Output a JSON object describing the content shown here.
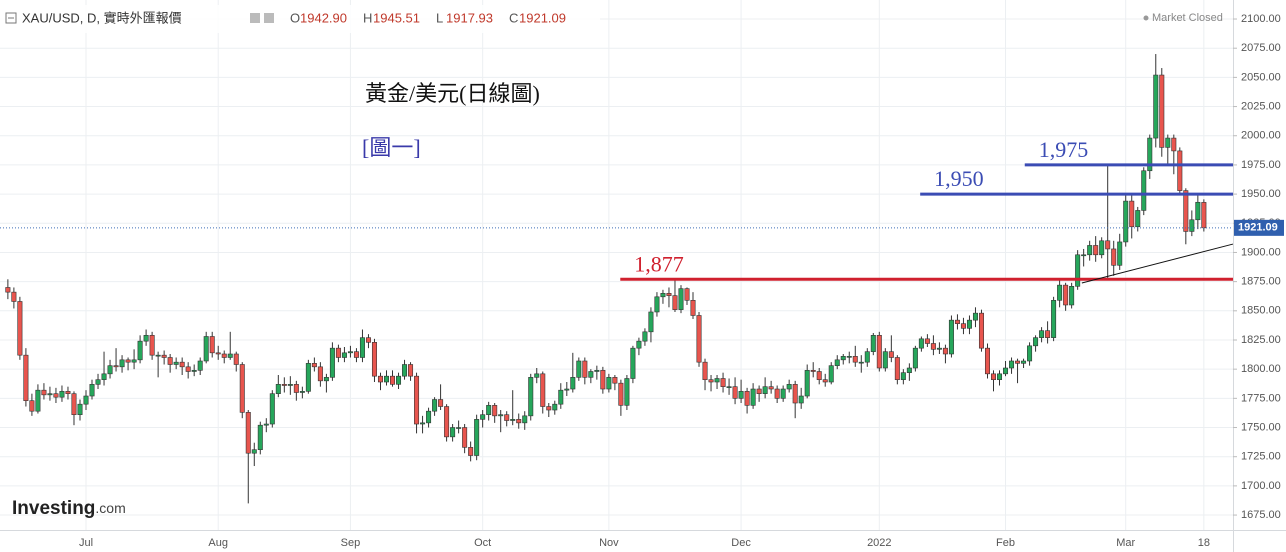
{
  "chart_data": {
    "type": "candlestick",
    "symbol": "XAU/USD, D, 實時外匯報價",
    "ohlc_labels": [
      "O",
      "H",
      "L",
      "C"
    ],
    "ohlc_values": [
      "1942.90",
      "1945.51",
      "1917.93",
      "1921.09"
    ],
    "status": "Market Closed",
    "title": "黃金/美元(日線圖)",
    "subtitle": "[圖一]",
    "logo": [
      "Investing",
      ".com"
    ],
    "up_color": "#26a65b",
    "down_color": "#e8554e",
    "last_price": {
      "value": 1921.09,
      "label": "1921.09"
    },
    "xlim": [
      -1.31,
      203.85
    ],
    "ylim": [
      1662.2,
      2116.3
    ],
    "xticks": [
      {
        "value": 13,
        "label": "Jul"
      },
      {
        "value": 35,
        "label": "Aug"
      },
      {
        "value": 57,
        "label": "Sep"
      },
      {
        "value": 79,
        "label": "Oct"
      },
      {
        "value": 100,
        "label": "Nov"
      },
      {
        "value": 122,
        "label": "Dec"
      },
      {
        "value": 145,
        "label": "2022"
      },
      {
        "value": 166,
        "label": "Feb"
      },
      {
        "value": 186,
        "label": "Mar"
      },
      {
        "value": 199,
        "label": "18"
      }
    ],
    "yticks": [
      {
        "value": 1675,
        "label": "1675.00"
      },
      {
        "value": 1700,
        "label": "1700.00"
      },
      {
        "value": 1725,
        "label": "1725.00"
      },
      {
        "value": 1750,
        "label": "1750.00"
      },
      {
        "value": 1775,
        "label": "1775.00"
      },
      {
        "value": 1800,
        "label": "1800.00"
      },
      {
        "value": 1825,
        "label": "1825.00"
      },
      {
        "value": 1850,
        "label": "1850.00"
      },
      {
        "value": 1875,
        "label": "1875.00"
      },
      {
        "value": 1900,
        "label": "1900.00"
      },
      {
        "value": 1925,
        "label": "1925.00"
      },
      {
        "value": 1950,
        "label": "1950.00"
      },
      {
        "value": 1975,
        "label": "1975.00"
      },
      {
        "value": 2000,
        "label": "2000.00"
      },
      {
        "value": 2025,
        "label": "2025.00"
      },
      {
        "value": 2050,
        "label": "2050.00"
      },
      {
        "value": 2075,
        "label": "2075.00"
      },
      {
        "value": 2100,
        "label": "2100.00"
      }
    ],
    "levels": [
      {
        "value": 1975,
        "label": "1,975",
        "start": 169.2,
        "color": "#3b4cb4"
      },
      {
        "value": 1950,
        "label": "1,950",
        "start": 151.8,
        "color": "#3b4cb4"
      },
      {
        "value": 1877,
        "label": "1,877",
        "start": 101.9,
        "color": "#d0202e"
      }
    ],
    "trendline": {
      "x": [
        178.7,
        203.85
      ],
      "y": [
        1873.8,
        1907.2
      ]
    },
    "candles": [
      [
        1870,
        1877,
        1860,
        1866
      ],
      [
        1866,
        1870,
        1852,
        1858
      ],
      [
        1858,
        1862,
        1808,
        1812
      ],
      [
        1812,
        1818,
        1768,
        1773
      ],
      [
        1773,
        1779,
        1760,
        1764
      ],
      [
        1764,
        1787,
        1762,
        1782
      ],
      [
        1782,
        1788,
        1774,
        1778
      ],
      [
        1778,
        1785,
        1773,
        1779
      ],
      [
        1779,
        1784,
        1771,
        1776
      ],
      [
        1776,
        1786,
        1772,
        1781
      ],
      [
        1781,
        1785,
        1774,
        1779
      ],
      [
        1779,
        1781,
        1752,
        1761
      ],
      [
        1761,
        1774,
        1756,
        1770
      ],
      [
        1770,
        1782,
        1765,
        1777
      ],
      [
        1777,
        1791,
        1774,
        1787
      ],
      [
        1787,
        1796,
        1783,
        1791
      ],
      [
        1791,
        1815,
        1786,
        1796
      ],
      [
        1796,
        1808,
        1792,
        1803
      ],
      [
        1803,
        1818,
        1798,
        1802
      ],
      [
        1802,
        1812,
        1797,
        1808
      ],
      [
        1808,
        1810,
        1799,
        1806
      ],
      [
        1806,
        1817,
        1800,
        1808
      ],
      [
        1808,
        1829,
        1805,
        1824
      ],
      [
        1824,
        1834,
        1820,
        1829
      ],
      [
        1829,
        1832,
        1808,
        1812
      ],
      [
        1812,
        1815,
        1793,
        1812
      ],
      [
        1812,
        1816,
        1804,
        1810
      ],
      [
        1810,
        1813,
        1797,
        1804
      ],
      [
        1804,
        1810,
        1800,
        1806
      ],
      [
        1806,
        1810,
        1795,
        1802
      ],
      [
        1802,
        1806,
        1792,
        1798
      ],
      [
        1798,
        1804,
        1794,
        1799
      ],
      [
        1799,
        1810,
        1795,
        1807
      ],
      [
        1807,
        1832,
        1805,
        1828
      ],
      [
        1828,
        1832,
        1810,
        1814
      ],
      [
        1814,
        1820,
        1808,
        1813
      ],
      [
        1813,
        1816,
        1805,
        1810
      ],
      [
        1810,
        1832,
        1808,
        1813
      ],
      [
        1813,
        1815,
        1798,
        1804
      ],
      [
        1804,
        1806,
        1758,
        1763
      ],
      [
        1763,
        1765,
        1685,
        1728
      ],
      [
        1728,
        1737,
        1717,
        1731
      ],
      [
        1731,
        1755,
        1727,
        1752
      ],
      [
        1752,
        1758,
        1746,
        1753
      ],
      [
        1753,
        1782,
        1750,
        1779
      ],
      [
        1779,
        1795,
        1776,
        1787
      ],
      [
        1787,
        1793,
        1780,
        1786
      ],
      [
        1786,
        1794,
        1778,
        1787
      ],
      [
        1787,
        1790,
        1773,
        1780
      ],
      [
        1780,
        1785,
        1775,
        1781
      ],
      [
        1781,
        1808,
        1779,
        1805
      ],
      [
        1805,
        1810,
        1798,
        1802
      ],
      [
        1802,
        1806,
        1785,
        1790
      ],
      [
        1790,
        1796,
        1780,
        1793
      ],
      [
        1793,
        1823,
        1790,
        1818
      ],
      [
        1818,
        1821,
        1806,
        1810
      ],
      [
        1810,
        1819,
        1806,
        1814
      ],
      [
        1814,
        1820,
        1810,
        1815
      ],
      [
        1815,
        1818,
        1806,
        1810
      ],
      [
        1810,
        1834,
        1806,
        1827
      ],
      [
        1827,
        1830,
        1818,
        1823
      ],
      [
        1823,
        1826,
        1789,
        1794
      ],
      [
        1794,
        1797,
        1782,
        1789
      ],
      [
        1789,
        1799,
        1786,
        1794
      ],
      [
        1794,
        1799,
        1785,
        1787
      ],
      [
        1787,
        1797,
        1783,
        1794
      ],
      [
        1794,
        1808,
        1791,
        1804
      ],
      [
        1804,
        1806,
        1790,
        1794
      ],
      [
        1794,
        1797,
        1745,
        1753
      ],
      [
        1753,
        1760,
        1745,
        1754
      ],
      [
        1754,
        1767,
        1750,
        1764
      ],
      [
        1764,
        1776,
        1760,
        1774
      ],
      [
        1774,
        1787,
        1765,
        1768
      ],
      [
        1768,
        1770,
        1738,
        1742
      ],
      [
        1742,
        1753,
        1738,
        1750
      ],
      [
        1750,
        1756,
        1745,
        1750
      ],
      [
        1750,
        1753,
        1728,
        1733
      ],
      [
        1733,
        1738,
        1721,
        1726
      ],
      [
        1726,
        1761,
        1722,
        1757
      ],
      [
        1757,
        1765,
        1750,
        1761
      ],
      [
        1761,
        1772,
        1756,
        1769
      ],
      [
        1769,
        1771,
        1754,
        1760
      ],
      [
        1760,
        1765,
        1746,
        1761
      ],
      [
        1761,
        1764,
        1751,
        1756
      ],
      [
        1756,
        1782,
        1752,
        1757
      ],
      [
        1757,
        1762,
        1749,
        1754
      ],
      [
        1754,
        1764,
        1748,
        1760
      ],
      [
        1760,
        1796,
        1756,
        1793
      ],
      [
        1793,
        1801,
        1788,
        1796
      ],
      [
        1796,
        1798,
        1762,
        1768
      ],
      [
        1768,
        1771,
        1759,
        1765
      ],
      [
        1765,
        1773,
        1761,
        1770
      ],
      [
        1770,
        1788,
        1766,
        1782
      ],
      [
        1782,
        1789,
        1777,
        1783
      ],
      [
        1783,
        1814,
        1780,
        1793
      ],
      [
        1793,
        1810,
        1790,
        1807
      ],
      [
        1807,
        1810,
        1787,
        1793
      ],
      [
        1793,
        1800,
        1788,
        1798
      ],
      [
        1798,
        1803,
        1791,
        1799
      ],
      [
        1799,
        1802,
        1779,
        1783
      ],
      [
        1783,
        1796,
        1780,
        1793
      ],
      [
        1793,
        1795,
        1782,
        1788
      ],
      [
        1788,
        1791,
        1760,
        1769
      ],
      [
        1769,
        1795,
        1765,
        1792
      ],
      [
        1792,
        1820,
        1788,
        1818
      ],
      [
        1818,
        1827,
        1812,
        1824
      ],
      [
        1824,
        1835,
        1820,
        1832
      ],
      [
        1832,
        1853,
        1823,
        1849
      ],
      [
        1849,
        1866,
        1845,
        1862
      ],
      [
        1862,
        1868,
        1856,
        1865
      ],
      [
        1865,
        1870,
        1853,
        1863
      ],
      [
        1863,
        1877,
        1849,
        1851
      ],
      [
        1851,
        1872,
        1848,
        1869
      ],
      [
        1869,
        1870,
        1855,
        1859
      ],
      [
        1859,
        1866,
        1843,
        1846
      ],
      [
        1846,
        1849,
        1802,
        1806
      ],
      [
        1806,
        1809,
        1782,
        1791
      ],
      [
        1791,
        1795,
        1781,
        1789
      ],
      [
        1789,
        1795,
        1783,
        1792
      ],
      [
        1792,
        1797,
        1780,
        1785
      ],
      [
        1785,
        1792,
        1778,
        1785
      ],
      [
        1785,
        1793,
        1770,
        1775
      ],
      [
        1775,
        1791,
        1771,
        1781
      ],
      [
        1781,
        1784,
        1762,
        1769
      ],
      [
        1769,
        1788,
        1766,
        1783
      ],
      [
        1783,
        1786,
        1772,
        1779
      ],
      [
        1779,
        1793,
        1775,
        1785
      ],
      [
        1785,
        1790,
        1779,
        1783
      ],
      [
        1783,
        1786,
        1771,
        1775
      ],
      [
        1775,
        1786,
        1772,
        1783
      ],
      [
        1783,
        1791,
        1780,
        1787
      ],
      [
        1787,
        1790,
        1758,
        1771
      ],
      [
        1771,
        1784,
        1766,
        1777
      ],
      [
        1777,
        1804,
        1775,
        1799
      ],
      [
        1799,
        1806,
        1793,
        1798
      ],
      [
        1798,
        1801,
        1787,
        1791
      ],
      [
        1791,
        1796,
        1785,
        1789
      ],
      [
        1789,
        1806,
        1787,
        1803
      ],
      [
        1803,
        1812,
        1800,
        1808
      ],
      [
        1808,
        1813,
        1804,
        1811
      ],
      [
        1811,
        1815,
        1805,
        1811
      ],
      [
        1811,
        1820,
        1802,
        1806
      ],
      [
        1806,
        1812,
        1797,
        1806
      ],
      [
        1806,
        1818,
        1802,
        1815
      ],
      [
        1815,
        1831,
        1812,
        1829
      ],
      [
        1829,
        1832,
        1798,
        1801
      ],
      [
        1801,
        1818,
        1798,
        1815
      ],
      [
        1815,
        1829,
        1806,
        1810
      ],
      [
        1810,
        1812,
        1787,
        1791
      ],
      [
        1791,
        1800,
        1787,
        1797
      ],
      [
        1797,
        1805,
        1790,
        1801
      ],
      [
        1801,
        1820,
        1798,
        1818
      ],
      [
        1818,
        1828,
        1815,
        1826
      ],
      [
        1826,
        1830,
        1819,
        1822
      ],
      [
        1822,
        1829,
        1812,
        1817
      ],
      [
        1817,
        1823,
        1813,
        1818
      ],
      [
        1818,
        1821,
        1805,
        1813
      ],
      [
        1813,
        1846,
        1810,
        1842
      ],
      [
        1842,
        1847,
        1834,
        1839
      ],
      [
        1839,
        1844,
        1830,
        1835
      ],
      [
        1835,
        1846,
        1830,
        1842
      ],
      [
        1842,
        1853,
        1836,
        1848
      ],
      [
        1848,
        1851,
        1815,
        1818
      ],
      [
        1818,
        1822,
        1792,
        1796
      ],
      [
        1796,
        1799,
        1781,
        1791
      ],
      [
        1791,
        1799,
        1786,
        1796
      ],
      [
        1796,
        1807,
        1794,
        1801
      ],
      [
        1801,
        1810,
        1796,
        1807
      ],
      [
        1807,
        1809,
        1788,
        1805
      ],
      [
        1805,
        1809,
        1801,
        1807
      ],
      [
        1807,
        1823,
        1803,
        1820
      ],
      [
        1820,
        1829,
        1815,
        1827
      ],
      [
        1827,
        1836,
        1823,
        1833
      ],
      [
        1833,
        1841,
        1822,
        1827
      ],
      [
        1827,
        1862,
        1824,
        1859
      ],
      [
        1859,
        1878,
        1853,
        1872
      ],
      [
        1872,
        1874,
        1850,
        1855
      ],
      [
        1855,
        1874,
        1852,
        1871
      ],
      [
        1871,
        1902,
        1868,
        1898
      ],
      [
        1898,
        1903,
        1888,
        1898
      ],
      [
        1898,
        1910,
        1893,
        1906
      ],
      [
        1906,
        1914,
        1892,
        1898
      ],
      [
        1898,
        1913,
        1895,
        1910
      ],
      [
        1910,
        1975,
        1878,
        1903
      ],
      [
        1903,
        1910,
        1880,
        1889
      ],
      [
        1889,
        1916,
        1885,
        1909
      ],
      [
        1909,
        1951,
        1905,
        1944
      ],
      [
        1944,
        1950,
        1912,
        1922
      ],
      [
        1922,
        1939,
        1918,
        1936
      ],
      [
        1936,
        1973,
        1932,
        1970
      ],
      [
        1970,
        2001,
        1963,
        1998
      ],
      [
        1998,
        2070,
        1990,
        2052
      ],
      [
        2052,
        2058,
        1982,
        1990
      ],
      [
        1990,
        2001,
        1975,
        1998
      ],
      [
        1998,
        2001,
        1967,
        1987
      ],
      [
        1987,
        1990,
        1949,
        1953
      ],
      [
        1953,
        1955,
        1907,
        1918
      ],
      [
        1918,
        1936,
        1914,
        1928
      ],
      [
        1928,
        1949,
        1920,
        1943
      ],
      [
        1942.9,
        1945.51,
        1917.93,
        1921.09
      ]
    ]
  }
}
